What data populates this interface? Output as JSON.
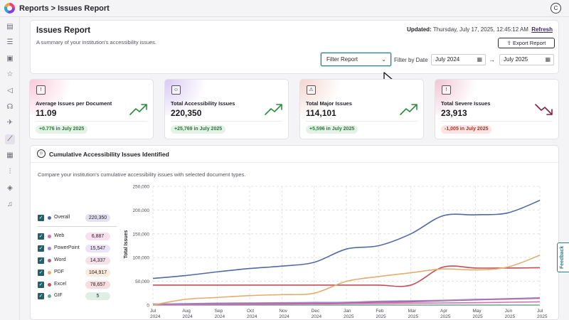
{
  "topbar": {
    "breadcrumb": "Reports > Issues Report",
    "avatar_initial": "C"
  },
  "sidebar": {
    "icons": [
      "document-icon",
      "list-check-icon",
      "file-search-icon",
      "star-icon",
      "megaphone-icon",
      "user-voice-icon",
      "plane-icon",
      "chart-line-icon",
      "layout-icon",
      "sliders-icon",
      "layers-icon",
      "bell-icon"
    ],
    "active_index": 7
  },
  "header": {
    "title": "Issues Report",
    "subtitle": "A summary of your institution's accessibility issues.",
    "updated_label": "Updated:",
    "updated_value": "Thursday, July 17, 2025, 12:45:12 AM",
    "refresh_label": "Refresh",
    "export_label": "Export Report",
    "filter_select_value": "Filter Report",
    "filter_date_label": "Filter by Date",
    "date_from": "July 2024",
    "date_to": "July 2025"
  },
  "cards": [
    {
      "title": "Average Issues per Document",
      "value": "11.09",
      "delta": "+0.776 in July 2025",
      "trend": "up",
      "glow": "#f9c9d9",
      "icon": "!"
    },
    {
      "title": "Total Accessibility Issues",
      "value": "220,350",
      "delta": "+25,769 in July 2025",
      "trend": "up",
      "glow": "#d9c9f3",
      "icon": "☺"
    },
    {
      "title": "Total Major Issues",
      "value": "114,101",
      "delta": "+5,596 in July 2025",
      "trend": "up",
      "glow": "#f3d5cf",
      "icon": "⚠"
    },
    {
      "title": "Total Severe Issues",
      "value": "23,913",
      "delta": "-1,005 in July 2025",
      "trend": "down",
      "glow": "#f1c6d4",
      "icon": "!"
    }
  ],
  "chart_panel": {
    "title": "Cumulative Accessibility Issues Identified",
    "description": "Compare your institution's cumulative accessibility issues with selected document types."
  },
  "legend": [
    {
      "name": "Overall",
      "value": "220,350",
      "color": "#4f6aa6",
      "pill": "#e3e2ee"
    },
    {
      "name": "Web",
      "value": "6,887",
      "color": "#d86fb6",
      "pill": "#fae0ef"
    },
    {
      "name": "PowerPoint",
      "value": "15,547",
      "color": "#9d86cf",
      "pill": "#ebe4f6"
    },
    {
      "name": "Word",
      "value": "14,337",
      "color": "#b05c83",
      "pill": "#f5e1ea"
    },
    {
      "name": "PDF",
      "value": "104,917",
      "color": "#e2ad6e",
      "pill": "#fbecdb"
    },
    {
      "name": "Excel",
      "value": "78,657",
      "color": "#c74d57",
      "pill": "#f8dde0"
    },
    {
      "name": "GIF",
      "value": "5",
      "color": "#6fa58a",
      "pill": "#e0efe6"
    }
  ],
  "feedback_label": "Feedback",
  "chart_data": {
    "type": "line",
    "ylabel": "Total Issues",
    "ylim": [
      0,
      250000
    ],
    "yticks": [
      "250,000",
      "200,000",
      "150,000",
      "100,000",
      "50,000",
      "0"
    ],
    "x": [
      [
        "Jul",
        "2024"
      ],
      [
        "Aug",
        "2024"
      ],
      [
        "Sep",
        "2024"
      ],
      [
        "Oct",
        "2024"
      ],
      [
        "Nov",
        "2024"
      ],
      [
        "Dec",
        "2024"
      ],
      [
        "Jan",
        "2025"
      ],
      [
        "Feb",
        "2025"
      ],
      [
        "Mar",
        "2025"
      ],
      [
        "Apr",
        "2025"
      ],
      [
        "May",
        "2025"
      ],
      [
        "Jun",
        "2025"
      ],
      [
        "Jul",
        "2025"
      ]
    ],
    "grid": true,
    "series": [
      {
        "name": "Overall",
        "color": "#4f6aa6",
        "values": [
          56000,
          62000,
          70000,
          77000,
          82000,
          90000,
          118000,
          125000,
          150000,
          188000,
          190000,
          194000,
          220350
        ]
      },
      {
        "name": "PDF",
        "color": "#e2ad6e",
        "values": [
          0,
          12000,
          16000,
          20000,
          22000,
          25000,
          50000,
          60000,
          68000,
          76000,
          74000,
          80000,
          104917
        ]
      },
      {
        "name": "Excel",
        "color": "#c74d57",
        "values": [
          42000,
          42000,
          42000,
          42000,
          42000,
          42000,
          42000,
          42000,
          42000,
          80000,
          78000,
          78000,
          78657
        ]
      },
      {
        "name": "PowerPoint",
        "color": "#9d86cf",
        "values": [
          2000,
          3000,
          4000,
          4500,
          5000,
          5500,
          6000,
          8000,
          9000,
          10000,
          12000,
          13500,
          15547
        ]
      },
      {
        "name": "Word",
        "color": "#b05c83",
        "values": [
          2000,
          2500,
          3000,
          3500,
          4000,
          4500,
          5000,
          6000,
          7000,
          9000,
          11000,
          12500,
          14337
        ]
      },
      {
        "name": "Web",
        "color": "#d86fb6",
        "values": [
          500,
          800,
          1000,
          1500,
          2000,
          2500,
          3000,
          3500,
          4000,
          4500,
          5000,
          6000,
          6887
        ]
      },
      {
        "name": "GIF",
        "color": "#6fa58a",
        "values": [
          0,
          0,
          0,
          0,
          0,
          1,
          1,
          2,
          3,
          3,
          4,
          5,
          5
        ]
      }
    ]
  }
}
